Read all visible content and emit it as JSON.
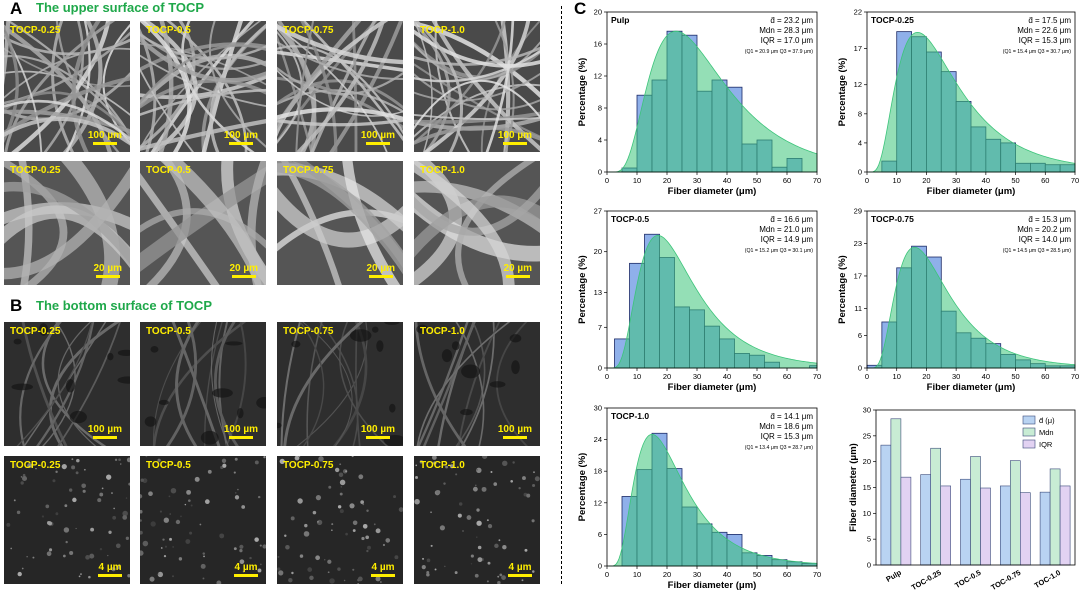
{
  "panel_a": {
    "letter": "A",
    "title": "The upper surface of TOCP",
    "row1": [
      {
        "label": "TOCP-0.25",
        "scale": "100 µm"
      },
      {
        "label": "TOCP-0.5",
        "scale": "100 µm"
      },
      {
        "label": "TOCP-0.75",
        "scale": "100 µm"
      },
      {
        "label": "TOCP-1.0",
        "scale": "100 µm"
      }
    ],
    "row2": [
      {
        "label": "TOCP-0.25",
        "scale": "20 µm"
      },
      {
        "label": "TOCP-0.5",
        "scale": "20 µm"
      },
      {
        "label": "TOCP-0.75",
        "scale": "20 µm"
      },
      {
        "label": "TOCP-1.0",
        "scale": "20 µm"
      }
    ]
  },
  "panel_b": {
    "letter": "B",
    "title": "The bottom surface of TOCP",
    "row1": [
      {
        "label": "TOCP-0.25",
        "scale": "100 µm"
      },
      {
        "label": "TOCP-0.5",
        "scale": "100 µm"
      },
      {
        "label": "TOCP-0.75",
        "scale": "100 µm"
      },
      {
        "label": "TOCP-1.0",
        "scale": "100 µm"
      }
    ],
    "row2": [
      {
        "label": "TOCP-0.25",
        "scale": "4 µm"
      },
      {
        "label": "TOCP-0.5",
        "scale": "4 µm"
      },
      {
        "label": "TOCP-0.75",
        "scale": "4 µm"
      },
      {
        "label": "TOCP-1.0",
        "scale": "4 µm"
      }
    ]
  },
  "panel_c": {
    "letter": "C"
  },
  "colors": {
    "bar_fill": "#8fb0ea",
    "bar_stroke": "#1c2a66",
    "fit": "#3cc47a",
    "overlap": "#5cc0a8",
    "green_title": "#1fa84a",
    "scale_yellow": "#ffee00"
  },
  "chart_data": [
    {
      "type": "bar",
      "title": "Pulp",
      "xlabel": "Fiber diameter (μm)",
      "ylabel": "Percentage (%)",
      "xlim": [
        0,
        70
      ],
      "ylim": [
        0,
        20
      ],
      "xticks": [
        "0",
        "10",
        "20",
        "30",
        "40",
        "50",
        "60",
        "70"
      ],
      "yticks": [
        "0",
        "4",
        "8",
        "12",
        "16",
        "20"
      ],
      "bin_edges": [
        5,
        10,
        15,
        20,
        25,
        30,
        35,
        40,
        45,
        50,
        55,
        60,
        65
      ],
      "values": [
        0.5,
        9.6,
        11.5,
        17.6,
        17.1,
        10.1,
        11.5,
        10.6,
        3.5,
        4.0,
        0.6,
        1.7
      ],
      "fit_peak": 23,
      "fit_height": 17.6,
      "fit_skew": 0.55,
      "stats": [
        "d̄ = 23.2 μm",
        "Mdn = 28.3 μm",
        "IQR = 17.0 μm"
      ],
      "quartiles": "(Q1 = 20.9 μm Q3 = 37.9 μm)"
    },
    {
      "type": "bar",
      "title": "TOCP-0.25",
      "xlabel": "Fiber diameter (μm)",
      "ylabel": "Percentage (%)",
      "xlim": [
        0,
        70
      ],
      "ylim": [
        0,
        22
      ],
      "xticks": [
        "0",
        "10",
        "20",
        "30",
        "40",
        "50",
        "60",
        "70"
      ],
      "yticks": [
        "0",
        "4",
        "8",
        "12",
        "17",
        "22"
      ],
      "bin_edges": [
        5,
        10,
        15,
        20,
        25,
        30,
        35,
        40,
        45,
        50,
        55,
        60,
        65,
        70
      ],
      "values": [
        1.5,
        19.3,
        18.6,
        16.5,
        13.8,
        9.7,
        6.2,
        4.5,
        4.0,
        1.2,
        1.2,
        1.0,
        1.0
      ],
      "fit_peak": 17,
      "fit_height": 19.2,
      "fit_skew": 0.6,
      "stats": [
        "d̄ = 17.5 μm",
        "Mdn = 22.6 μm",
        "IQR = 15.3 μm"
      ],
      "quartiles": "(Q1 = 15.4 μm Q3 = 30.7 μm)"
    },
    {
      "type": "bar",
      "title": "TOCP-0.5",
      "xlabel": "Fiber diameter (μm)",
      "ylabel": "Percentage (%)",
      "xlim": [
        0,
        70
      ],
      "ylim": [
        0,
        27
      ],
      "xticks": [
        "0",
        "10",
        "20",
        "30",
        "40",
        "50",
        "60",
        "70"
      ],
      "yticks": [
        "0",
        "7",
        "13",
        "20",
        "27"
      ],
      "bin_edges": [
        2.5,
        7.5,
        12.5,
        17.5,
        22.5,
        27.5,
        32.5,
        37.5,
        42.5,
        47.5,
        52.5,
        57.5,
        62.5,
        67.5,
        70
      ],
      "values": [
        5.0,
        18.0,
        23.0,
        19.0,
        10.5,
        10.0,
        7.2,
        5.0,
        2.5,
        2.2,
        1.0,
        0.0,
        0.0,
        0.4
      ],
      "fit_peak": 17,
      "fit_height": 22.8,
      "fit_skew": 0.55,
      "stats": [
        "d̄ = 16.6 μm",
        "Mdn = 21.0 μm",
        "IQR = 14.9 μm"
      ],
      "quartiles": "(Q1 = 15.2 μm Q3 = 30.1 μm)"
    },
    {
      "type": "bar",
      "title": "TOCP-0.75",
      "xlabel": "Fiber diameter (μm)",
      "ylabel": "Percentage (%)",
      "xlim": [
        0,
        70
      ],
      "ylim": [
        0,
        29
      ],
      "xticks": [
        "0",
        "10",
        "20",
        "30",
        "40",
        "50",
        "60",
        "70"
      ],
      "yticks": [
        "0",
        "6",
        "11",
        "17",
        "23",
        "29"
      ],
      "bin_edges": [
        0,
        5,
        10,
        15,
        20,
        25,
        30,
        35,
        40,
        45,
        50,
        55,
        60,
        65,
        70
      ],
      "values": [
        0.5,
        8.5,
        18.5,
        22.5,
        20.5,
        10.5,
        6.5,
        5.5,
        4.5,
        2.5,
        1.5,
        0.8,
        0.4,
        0.4
      ],
      "fit_peak": 16,
      "fit_height": 22.3,
      "fit_skew": 0.55,
      "stats": [
        "d̄ = 15.3 μm",
        "Mdn = 20.2 μm",
        "IQR = 14.0 μm"
      ],
      "quartiles": "(Q1 = 14.5 μm Q3 = 28.5 μm)"
    },
    {
      "type": "bar",
      "title": "TOCP-1.0",
      "xlabel": "Fiber diameter (μm)",
      "ylabel": "Percentage (%)",
      "xlim": [
        0,
        70
      ],
      "ylim": [
        0,
        30
      ],
      "xticks": [
        "0",
        "10",
        "20",
        "30",
        "40",
        "50",
        "60",
        "70"
      ],
      "yticks": [
        "0",
        "6",
        "12",
        "18",
        "24",
        "30"
      ],
      "bin_edges": [
        5,
        10,
        15,
        20,
        25,
        30,
        35,
        40,
        45,
        50,
        55,
        60,
        65,
        70
      ],
      "values": [
        13.2,
        18.3,
        25.2,
        18.5,
        11.2,
        8.0,
        6.4,
        6.0,
        2.5,
        2.0,
        1.2,
        0.8,
        0.5
      ],
      "fit_peak": 15,
      "fit_height": 25.0,
      "fit_skew": 0.55,
      "stats": [
        "d̄ = 14.1 μm",
        "Mdn = 18.6 μm",
        "IQR = 15.3 μm"
      ],
      "quartiles": "(Q1 = 13.4 μm Q3 = 28.7 μm)"
    },
    {
      "type": "bar",
      "ylabel": "Fiber diameter (μm)",
      "ylim": [
        0,
        30
      ],
      "yticks": [
        "0",
        "5",
        "10",
        "15",
        "20",
        "25",
        "30"
      ],
      "categories": [
        "Pulp",
        "TOC-0.25",
        "TOC-0.5",
        "TOC-0.75",
        "TOC-1.0"
      ],
      "legend_position": "top-right",
      "series": [
        {
          "name": "d̄ (μ)",
          "values": [
            23.2,
            17.5,
            16.6,
            15.3,
            14.1
          ],
          "color": "#b9d3f2"
        },
        {
          "name": "Mdn",
          "values": [
            28.3,
            22.6,
            21.0,
            20.2,
            18.6
          ],
          "color": "#c8ecd4"
        },
        {
          "name": "IQR",
          "values": [
            17.0,
            15.3,
            14.9,
            14.0,
            15.3
          ],
          "color": "#e2d2f2"
        }
      ]
    }
  ]
}
